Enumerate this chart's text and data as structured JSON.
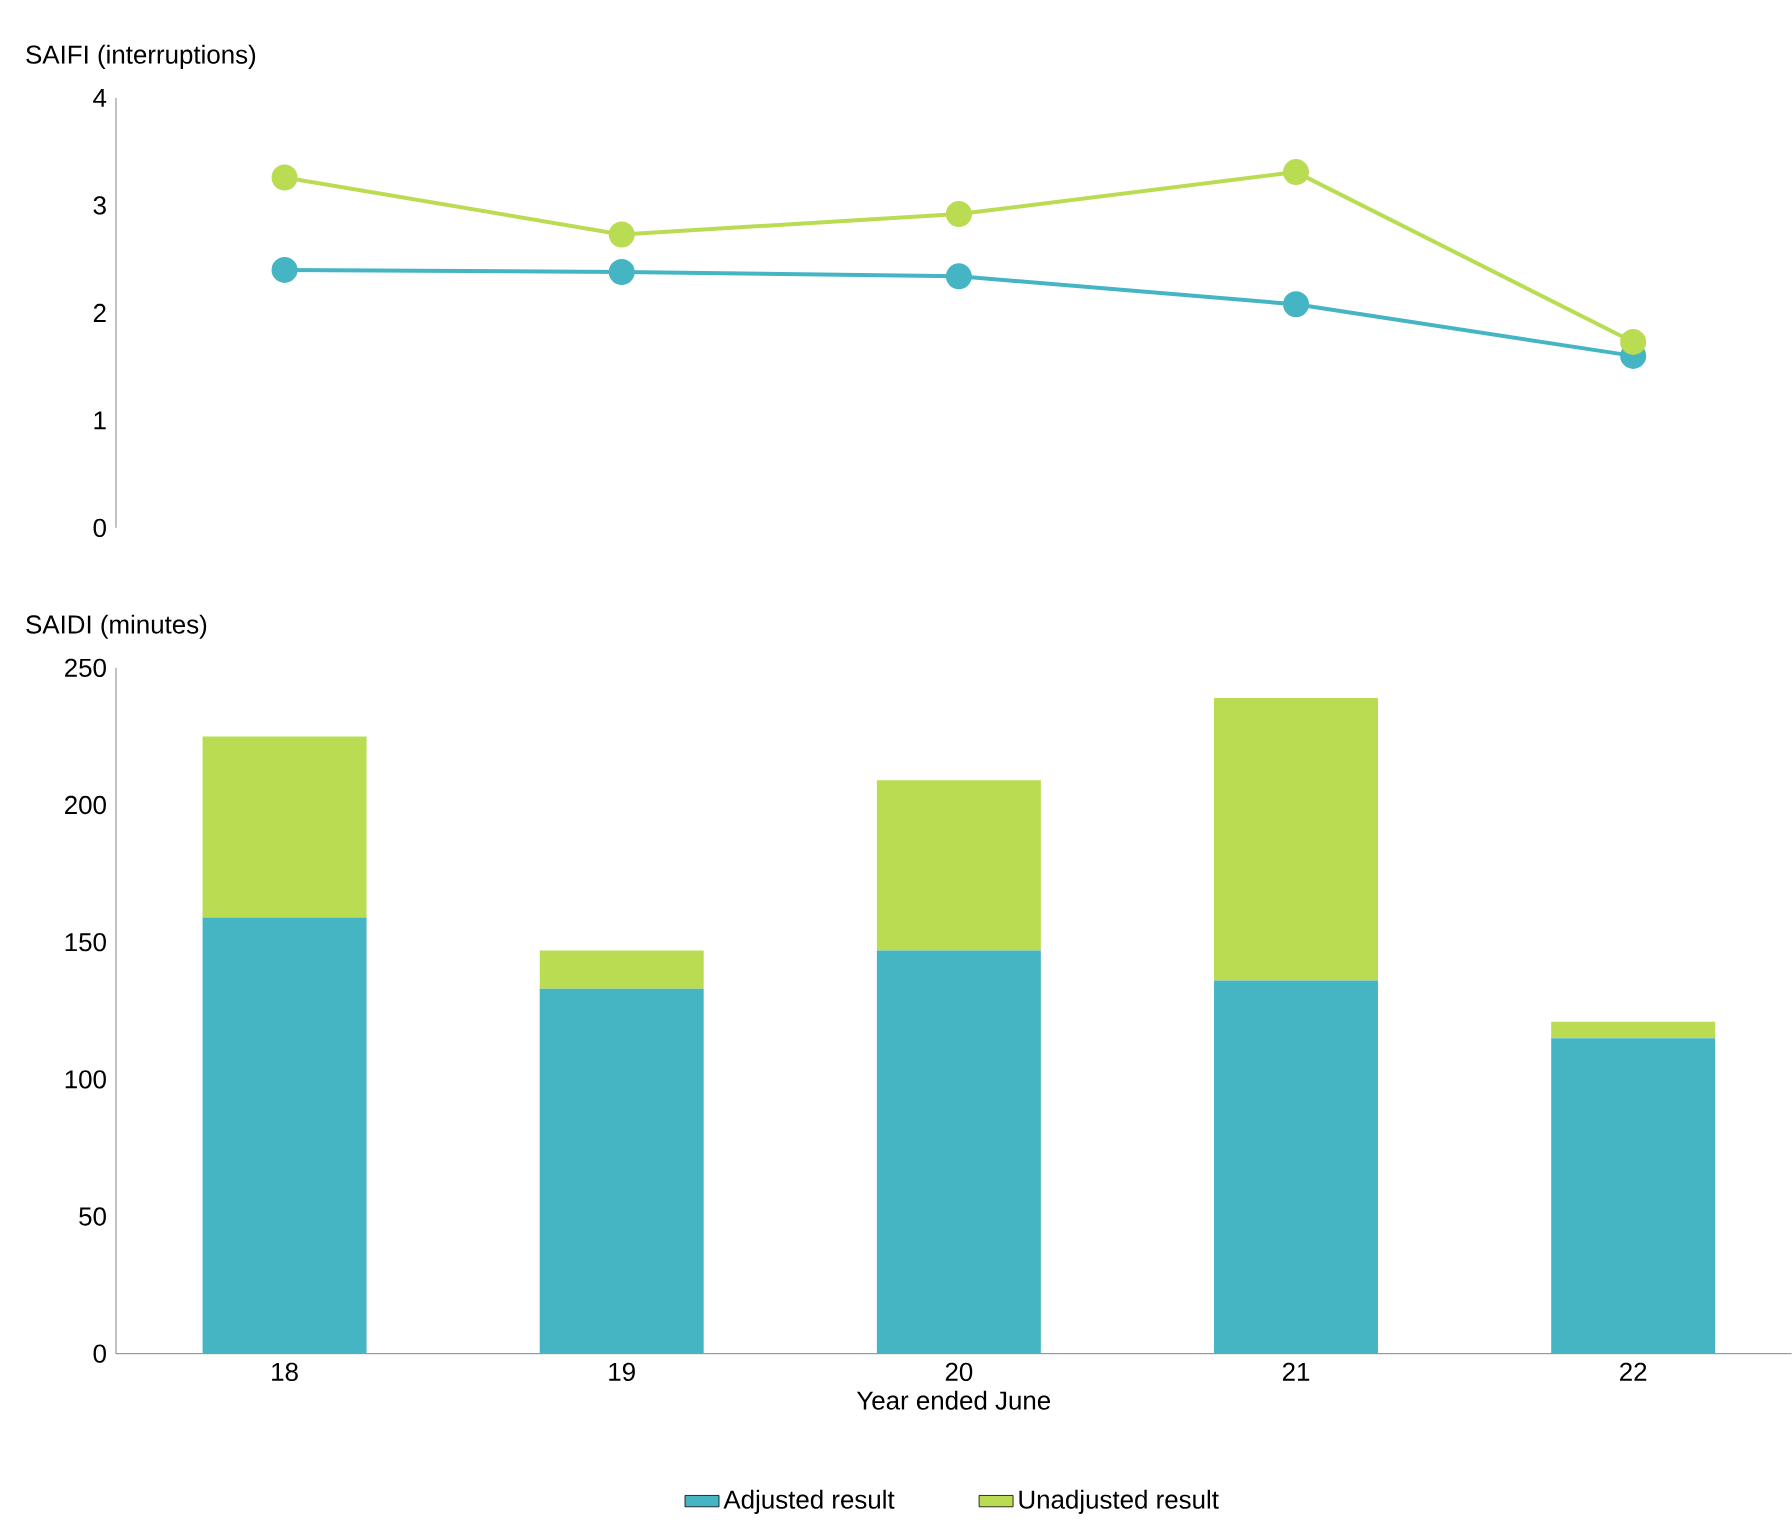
{
  "chart_data": [
    {
      "type": "line",
      "ylabel": "SAIFI (interruptions)",
      "categories": [
        "18",
        "19",
        "20",
        "21",
        "22"
      ],
      "series": [
        {
          "color": "#45b5c4",
          "values": [
            2.4,
            2.38,
            2.34,
            2.08,
            1.6
          ]
        },
        {
          "color": "#b9dc52",
          "values": [
            3.26,
            2.73,
            2.92,
            3.31,
            1.73
          ]
        }
      ],
      "ylim": [
        0,
        4
      ],
      "yticks": [
        0,
        1,
        2,
        3,
        4
      ],
      "marker": "circle",
      "tick_labels": "y"
    },
    {
      "type": "bar",
      "stacked": true,
      "ylabel": "SAIDI (minutes)",
      "xlabel": "Year ended June",
      "categories": [
        "18",
        "19",
        "20",
        "21",
        "22"
      ],
      "series": [
        {
          "name": "Adjusted result",
          "color": "#45b5c4",
          "values": [
            159,
            133,
            147,
            136,
            115
          ]
        },
        {
          "name": "Unadjusted result",
          "color": "#b9dc52",
          "values": [
            66,
            14,
            62,
            103,
            6
          ]
        }
      ],
      "ylim": [
        0,
        250
      ],
      "yticks": [
        0,
        50,
        100,
        150,
        200,
        250
      ],
      "legend": "bottom"
    }
  ]
}
